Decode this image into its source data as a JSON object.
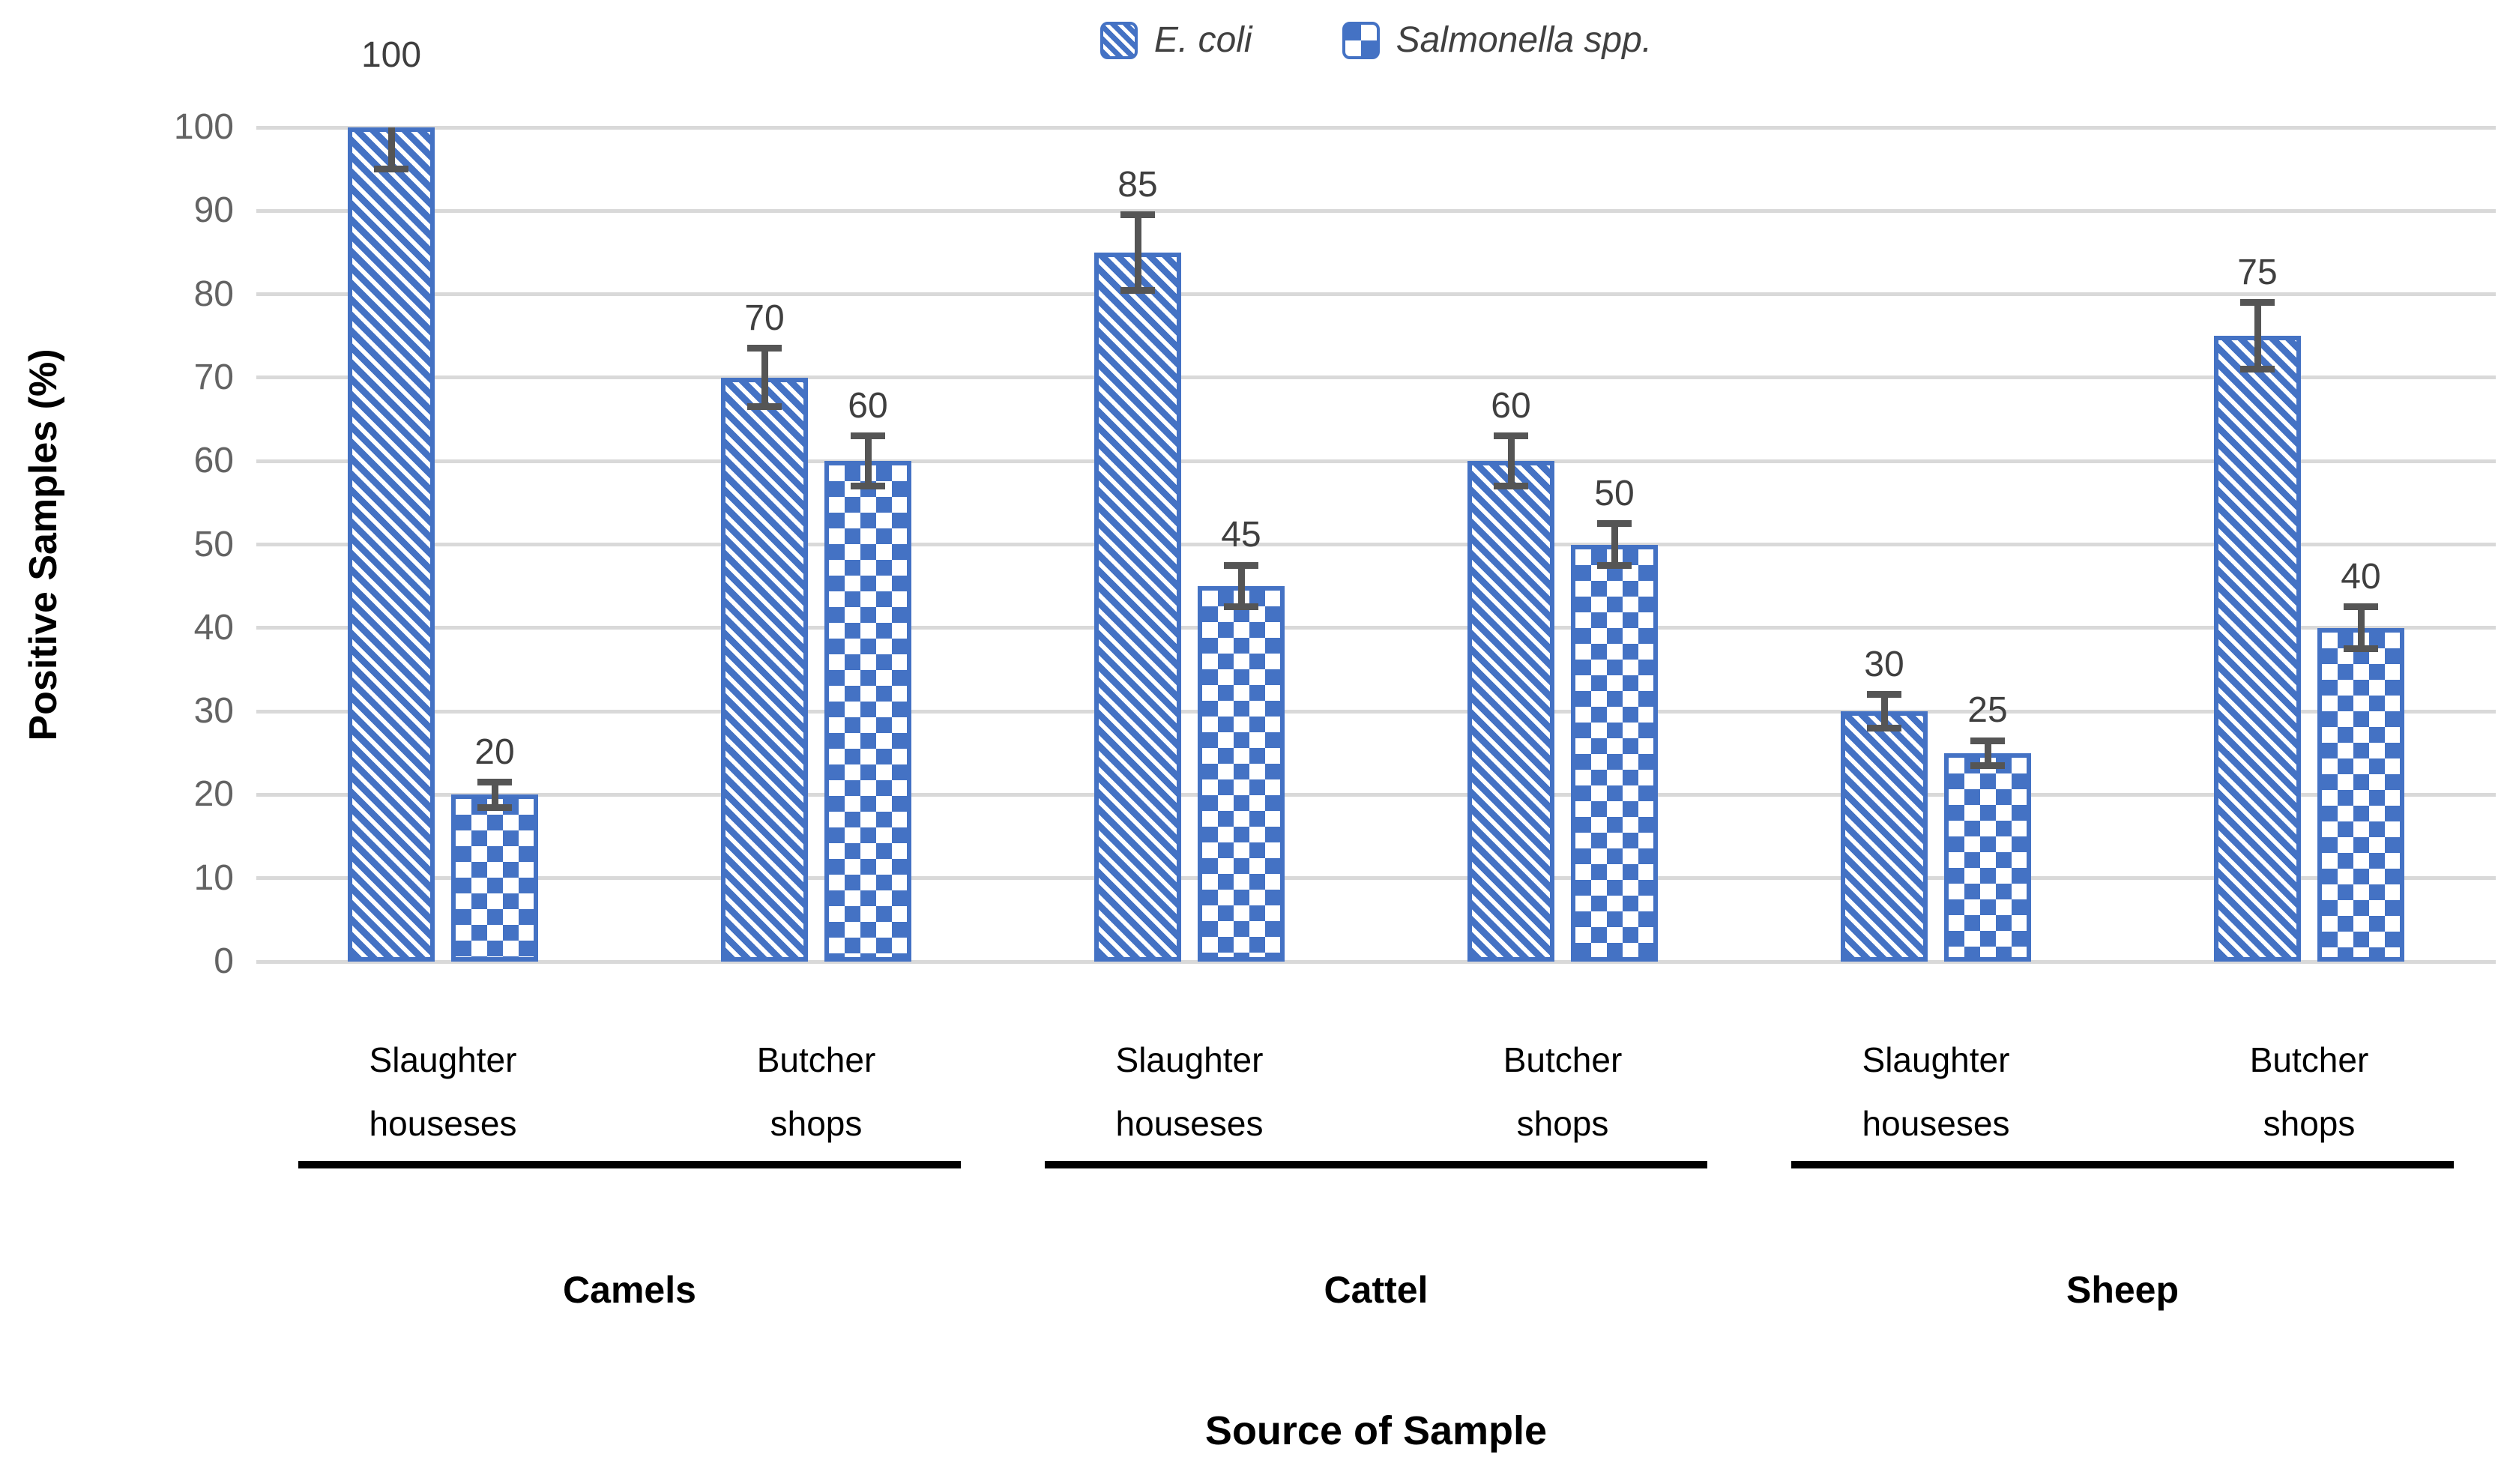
{
  "colors": {
    "bar_blue": "#4472C4",
    "error_bar_gray": "#555555",
    "gridline_gray": "#D9D9D9",
    "y_tick_text": "#636363",
    "data_label_text": "#3F3F3F",
    "category_text": "#000000",
    "axis_title_text": "#000000",
    "legend_text": "#404040",
    "background": "#FFFFFF"
  },
  "legend": {
    "items": [
      {
        "label": "E. coli",
        "pattern": "diagonal-hatch"
      },
      {
        "label": "Salmonella spp.",
        "pattern": "checkerboard"
      }
    ]
  },
  "chart_data": {
    "type": "bar",
    "xlabel": "Source of Sample",
    "ylabel": "Positive Samples (%)",
    "ylim": [
      0,
      100
    ],
    "yticks": [
      0,
      10,
      20,
      30,
      40,
      50,
      60,
      70,
      80,
      90,
      100
    ],
    "grid": true,
    "legend_position": "top-center",
    "data_labels": true,
    "error_bars": true,
    "groups": [
      {
        "label": "Camels",
        "categories": [
          [
            "Slaughter",
            "houseses"
          ],
          [
            "Butcher",
            "shops"
          ]
        ]
      },
      {
        "label": "Cattel",
        "categories": [
          [
            "Slaughter",
            "houseses"
          ],
          [
            "Butcher",
            "shops"
          ]
        ]
      },
      {
        "label": "Sheep",
        "categories": [
          [
            "Slaughter",
            "houseses"
          ],
          [
            "Butcher",
            "shops"
          ]
        ]
      }
    ],
    "series": [
      {
        "name": "E. coli",
        "pattern": "diagonal-hatch",
        "values": [
          100,
          70,
          85,
          60,
          30,
          75
        ],
        "errors": [
          5,
          3.5,
          4.5,
          3,
          2,
          4
        ]
      },
      {
        "name": "Salmonella spp.",
        "pattern": "checkerboard",
        "values": [
          20,
          60,
          45,
          50,
          25,
          40
        ],
        "errors": [
          1.5,
          3,
          2.5,
          2.5,
          1.5,
          2.5
        ]
      }
    ]
  }
}
